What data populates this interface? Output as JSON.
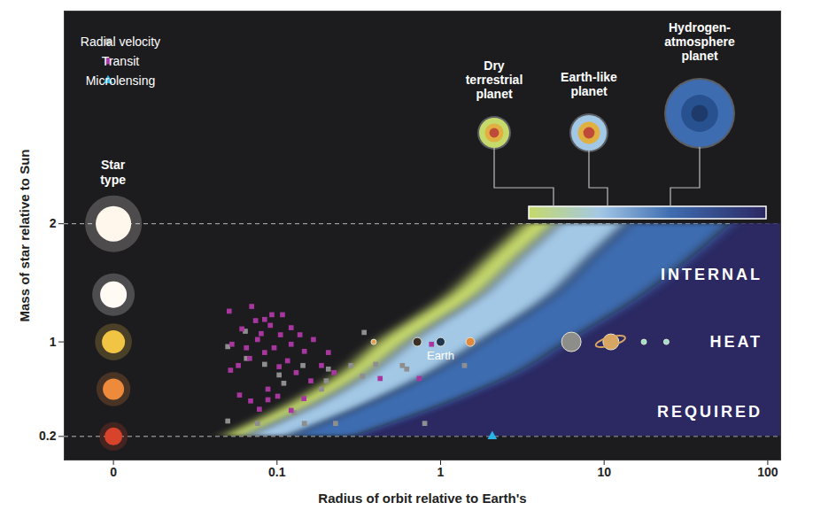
{
  "chart_data": {
    "type": "scatter",
    "x_label": "Radius of orbit relative to Earth's",
    "y_label": "Mass of star relative to Sun",
    "log": "x",
    "xlim": [
      0.005,
      120
    ],
    "xticks": [
      {
        "value": 0.01,
        "label": "0"
      },
      0.1,
      1,
      10,
      100
    ],
    "ylim": [
      0,
      3.8
    ],
    "yticks": [
      0.2,
      1,
      2
    ],
    "grid": false,
    "legend": "top-left",
    "series": [
      {
        "name": "Radial velocity",
        "color": "#8e8e8e",
        "marker": "square",
        "x": [
          0.05,
          0.05,
          0.065,
          0.084,
          0.064,
          0.103,
          0.11,
          0.127,
          0.147,
          0.228,
          0.076,
          0.206,
          0.283,
          0.341,
          0.333,
          0.401,
          0.584,
          0.621,
          1.4,
          0.8,
          0.144,
          0.2,
          0.187
        ],
        "y": [
          0.96,
          0.33,
          0.86,
          0.81,
          1.09,
          0.72,
          0.65,
          0.4,
          0.31,
          0.31,
          0.31,
          0.77,
          0.8,
          1.08,
          0.71,
          0.81,
          0.8,
          0.77,
          0.8,
          0.31,
          0.8,
          0.67,
          0.6
        ]
      },
      {
        "name": "Transit",
        "color": "#a8369f",
        "marker": "square",
        "x": [
          0.051,
          0.07,
          0.084,
          0.108,
          0.091,
          0.08,
          0.105,
          0.076,
          0.096,
          0.122,
          0.138,
          0.084,
          0.068,
          0.116,
          0.147,
          0.103,
          0.052,
          0.061,
          0.074,
          0.053,
          0.167,
          0.059,
          0.069,
          0.088,
          0.078,
          0.101,
          0.122,
          0.146,
          0.206,
          0.223,
          0.427,
          0.74,
          0.88,
          0.131,
          0.161,
          0.187,
          0.093,
          0.122,
          0.065,
          0.058,
          0.088
        ],
        "y": [
          1.26,
          1.3,
          1.19,
          1.23,
          1.14,
          1.07,
          1.06,
          1.02,
          0.95,
          0.98,
          1.06,
          0.91,
          0.86,
          0.84,
          0.92,
          0.79,
          0.76,
          1.11,
          1.18,
          0.98,
          1.02,
          0.55,
          0.5,
          0.51,
          0.43,
          0.54,
          0.42,
          0.52,
          0.91,
          0.74,
          0.69,
          0.69,
          0.98,
          0.74,
          0.67,
          0.8,
          1.23,
          1.12,
          0.95,
          0.8,
          0.6
        ]
      },
      {
        "name": "Microlensing",
        "color": "#27b4e6",
        "marker": "triangle",
        "x": [
          2.07
        ],
        "y": [
          0.2
        ]
      }
    ],
    "dashed_lines": [
      0.2,
      2
    ],
    "stars": {
      "label": "Star type",
      "x": 0.01,
      "mass": [
        2,
        1.4,
        1,
        0.6,
        0.2
      ],
      "colors": [
        "#fff6ec",
        "#fffaf4",
        "#f2c443",
        "#ee8a3c",
        "#d8442b"
      ],
      "sizes": [
        20,
        15,
        13,
        12,
        10
      ]
    },
    "zone_mass": [
      0.2,
      0.5,
      0.74,
      1,
      1.41,
      1.72,
      2
    ],
    "zones": [
      {
        "name": "Dry terrestrial planet",
        "color": "#c6d96b",
        "x1": [
          0.047,
          0.13,
          0.25,
          0.42,
          1.16,
          2.0,
          3.3
        ],
        "x2": [
          0.065,
          0.19,
          0.37,
          0.65,
          1.8,
          3.1,
          5.2
        ]
      },
      {
        "name": "Earth-like planet",
        "color": "#a3c8e6",
        "x1": [
          0.065,
          0.19,
          0.37,
          0.65,
          1.8,
          3.1,
          5.2
        ],
        "x2": [
          0.12,
          0.4,
          0.9,
          1.8,
          5,
          8.5,
          14
        ]
      },
      {
        "name": "Hydrogen-atmosphere planet",
        "color": "#3e6cb0",
        "x1": [
          0.12,
          0.4,
          0.9,
          1.8,
          5,
          8.5,
          14
        ],
        "x2": [
          0.3,
          1.2,
          3,
          6,
          18,
          35,
          60
        ]
      },
      {
        "name": null,
        "color": "#2b2862",
        "x1": [
          0.3,
          1.2,
          3,
          6,
          18,
          35,
          60
        ],
        "x2": [
          120,
          120,
          120,
          120,
          120,
          120,
          120
        ]
      }
    ],
    "region_labels": [
      {
        "text": "INTERNAL",
        "x": 93,
        "y": 1.57
      },
      {
        "text": "HEAT",
        "x": 93,
        "y": 1.0
      },
      {
        "text": "REQUIRED",
        "x": 93,
        "y": 0.41
      }
    ],
    "planets": {
      "x": [
        0.39,
        0.72,
        1,
        1.52,
        6.3,
        11,
        17.5,
        24
      ],
      "y": [
        1,
        1,
        1,
        1,
        1,
        1,
        1,
        1
      ],
      "colors": [
        "#e0a050",
        "#3a3028",
        "#1f3550",
        "#e08a40",
        "#8d8d8a",
        "#d7a662",
        "#9be3c6",
        "#9be3c6"
      ],
      "sizes": [
        3,
        5,
        5,
        5,
        11,
        9,
        3,
        3
      ],
      "markers": [
        "circle",
        "circle",
        "circle",
        "circle",
        "circle",
        "ringed",
        "circle",
        "circle"
      ]
    },
    "annotations": [
      {
        "text": "Earth",
        "x": 1,
        "y": 0.88
      }
    ]
  }
}
